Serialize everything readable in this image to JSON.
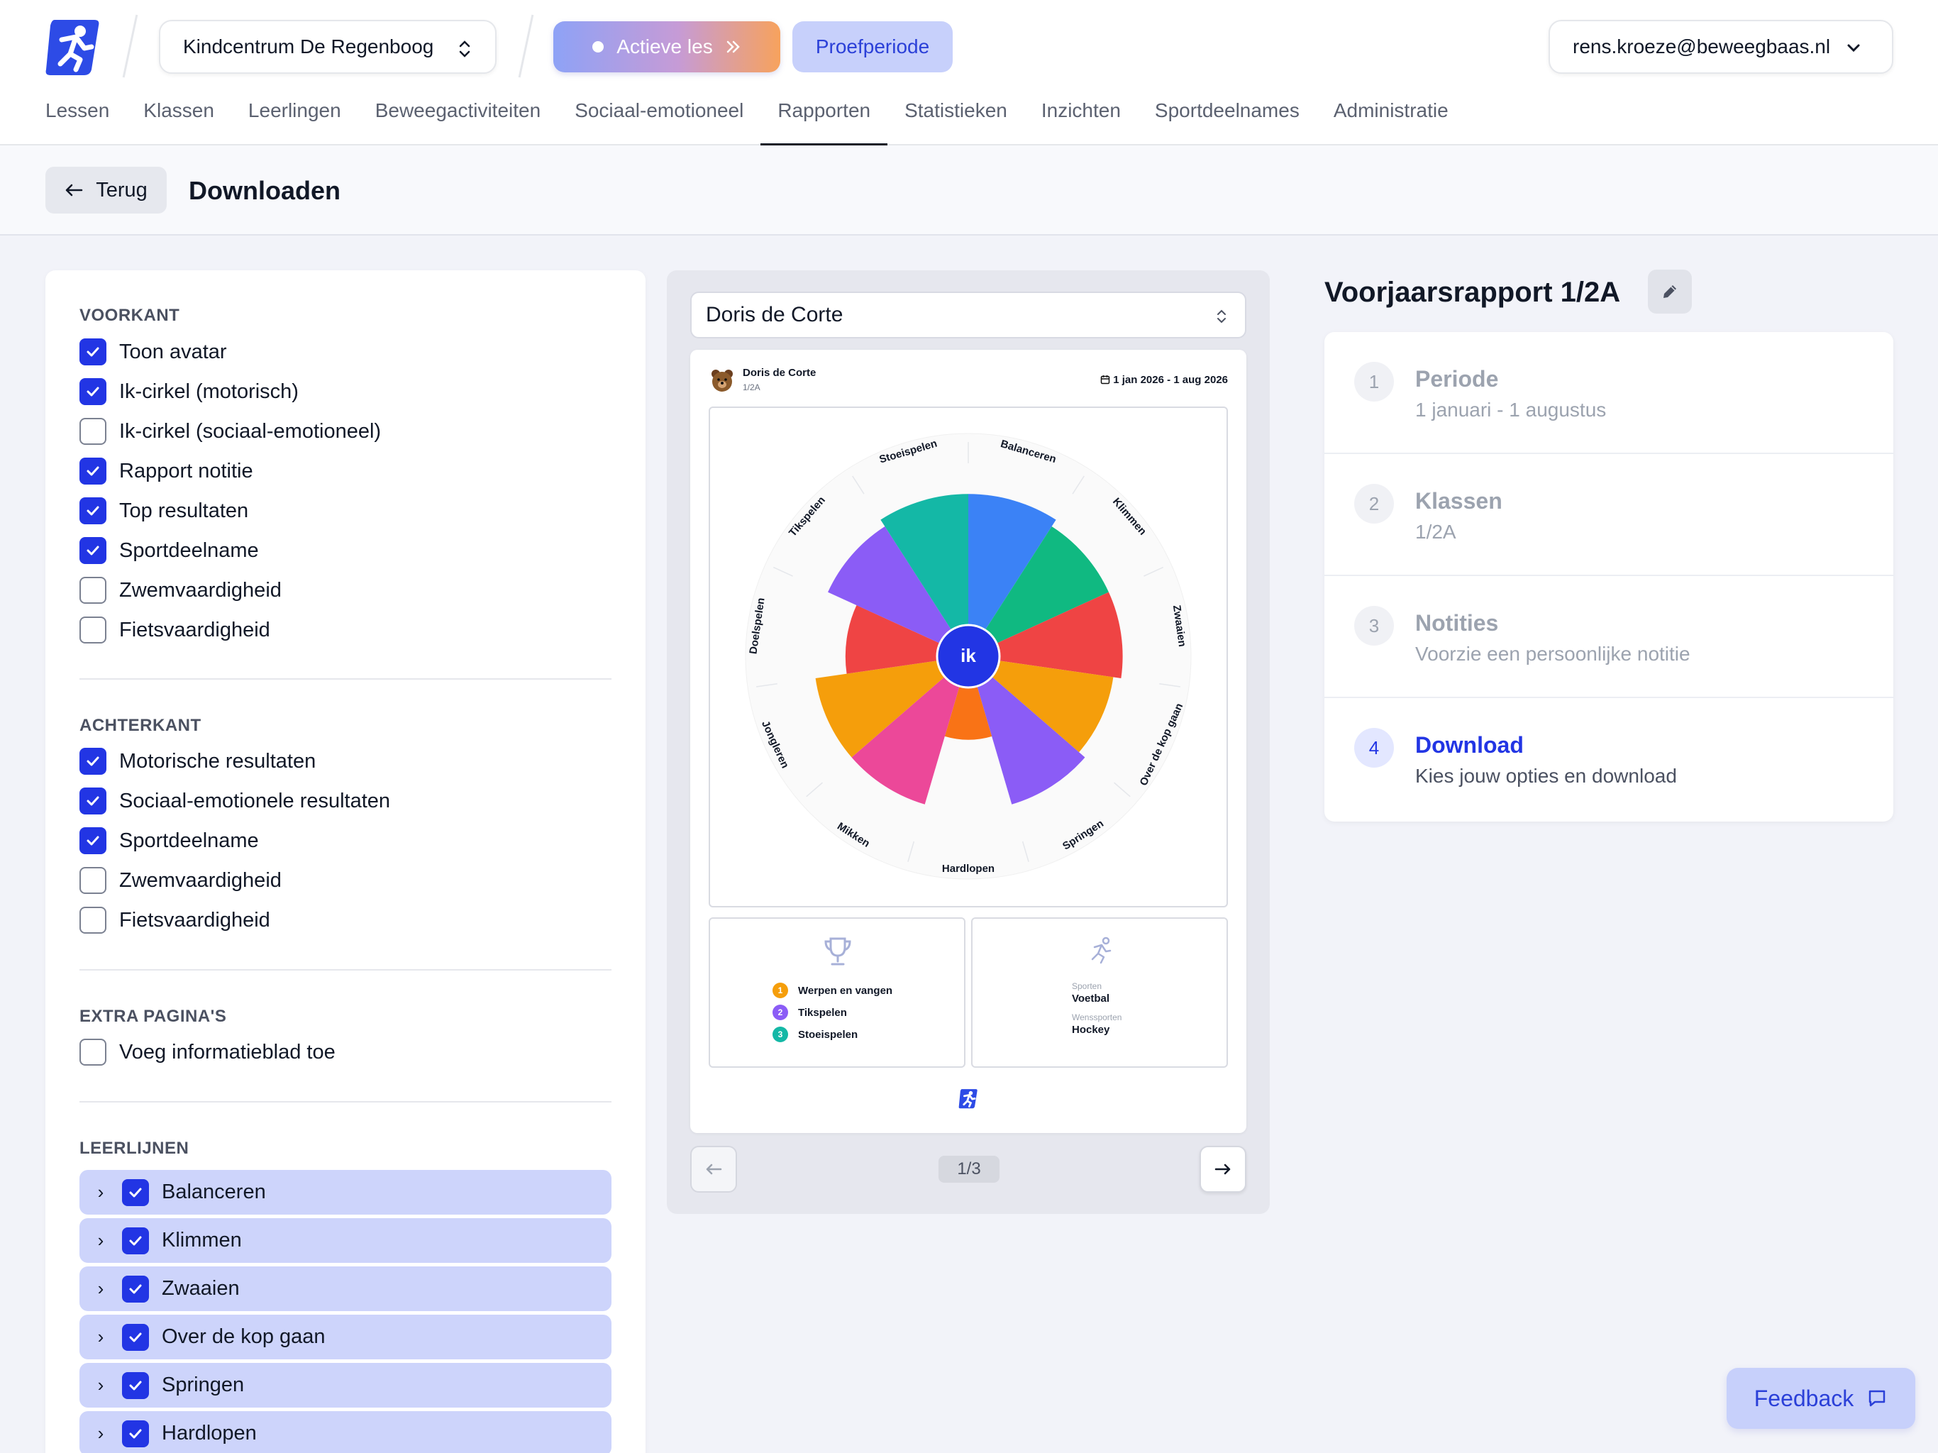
{
  "header": {
    "school": "Kindcentrum De Regenboog",
    "live_label": "Actieve les",
    "trial_label": "Proefperiode",
    "user_email": "rens.kroeze@beweegbaas.nl"
  },
  "nav": [
    "Lessen",
    "Klassen",
    "Leerlingen",
    "Beweegactiviteiten",
    "Sociaal-emotioneel",
    "Rapporten",
    "Statistieken",
    "Inzichten",
    "Sportdeelnames",
    "Administratie"
  ],
  "nav_active": "Rapporten",
  "subheader": {
    "back_label": "Terug",
    "title": "Downloaden"
  },
  "options": {
    "front": {
      "title": "VOORKANT",
      "items": [
        {
          "label": "Toon avatar",
          "checked": true
        },
        {
          "label": "Ik-cirkel (motorisch)",
          "checked": true
        },
        {
          "label": "Ik-cirkel (sociaal-emotioneel)",
          "checked": false
        },
        {
          "label": "Rapport notitie",
          "checked": true
        },
        {
          "label": "Top resultaten",
          "checked": true
        },
        {
          "label": "Sportdeelname",
          "checked": true
        },
        {
          "label": "Zwemvaardigheid",
          "checked": false
        },
        {
          "label": "Fietsvaardigheid",
          "checked": false
        }
      ]
    },
    "back": {
      "title": "ACHTERKANT",
      "items": [
        {
          "label": "Motorische resultaten",
          "checked": true
        },
        {
          "label": "Sociaal-emotionele resultaten",
          "checked": true
        },
        {
          "label": "Sportdeelname",
          "checked": true
        },
        {
          "label": "Zwemvaardigheid",
          "checked": false
        },
        {
          "label": "Fietsvaardigheid",
          "checked": false
        }
      ]
    },
    "extra": {
      "title": "EXTRA PAGINA'S",
      "items": [
        {
          "label": "Voeg informatieblad toe",
          "checked": false
        }
      ]
    },
    "learning_lines": {
      "title": "LEERLIJNEN",
      "items": [
        {
          "label": "Balanceren",
          "checked": true
        },
        {
          "label": "Klimmen",
          "checked": true
        },
        {
          "label": "Zwaaien",
          "checked": true
        },
        {
          "label": "Over de kop gaan",
          "checked": true
        },
        {
          "label": "Springen",
          "checked": true
        },
        {
          "label": "Hardlopen",
          "checked": true
        }
      ]
    }
  },
  "preview": {
    "student_select": "Doris de Corte",
    "student_name": "Doris de Corte",
    "student_class": "1/2A",
    "date_range": "1 jan 2026 - 1 aug 2026",
    "center_label": "ik",
    "wheel": [
      {
        "label": "Balanceren",
        "value": 0.85,
        "color": "#3b82f6"
      },
      {
        "label": "Klimmen",
        "value": 0.8,
        "color": "#10b981"
      },
      {
        "label": "Zwaaien",
        "value": 0.8,
        "color": "#ef4444"
      },
      {
        "label": "Over de kop gaan",
        "value": 0.75,
        "color": "#f59e0b"
      },
      {
        "label": "Springen",
        "value": 0.8,
        "color": "#8b5cf6"
      },
      {
        "label": "Hardlopen",
        "value": 0.35,
        "color": "#f97316"
      },
      {
        "label": "Mikken",
        "value": 0.8,
        "color": "#ec4899"
      },
      {
        "label": "Jongleren",
        "value": 0.8,
        "color": "#f59e0b"
      },
      {
        "label": "Doelspelen",
        "value": 0.6,
        "color": "#ef4444"
      },
      {
        "label": "Tikspelen",
        "value": 0.8,
        "color": "#8b5cf6"
      },
      {
        "label": "Stoeispelen",
        "value": 0.85,
        "color": "#14b8a6"
      }
    ],
    "top_results": [
      {
        "rank": "1",
        "label": "Werpen en vangen",
        "color": "#f59e0b"
      },
      {
        "rank": "2",
        "label": "Tikspelen",
        "color": "#8b5cf6"
      },
      {
        "rank": "3",
        "label": "Stoeispelen",
        "color": "#14b8a6"
      }
    ],
    "sports": {
      "sports_label": "Sporten",
      "sports_value": "Voetbal",
      "wish_label": "Wenssporten",
      "wish_value": "Hockey"
    },
    "page_indicator": "1/3"
  },
  "report": {
    "title": "Voorjaarsrapport 1/2A",
    "steps": [
      {
        "num": "1",
        "title": "Periode",
        "subtitle": "1 januari - 1 augustus",
        "active": false
      },
      {
        "num": "2",
        "title": "Klassen",
        "subtitle": "1/2A",
        "active": false
      },
      {
        "num": "3",
        "title": "Notities",
        "subtitle": "Voorzie een persoonlijke notitie",
        "active": false
      },
      {
        "num": "4",
        "title": "Download",
        "subtitle": "Kies jouw opties en download",
        "active": true
      }
    ]
  },
  "feedback_label": "Feedback",
  "colors": {
    "accent": "#2235e4",
    "accent_light": "#cdd4fb"
  }
}
